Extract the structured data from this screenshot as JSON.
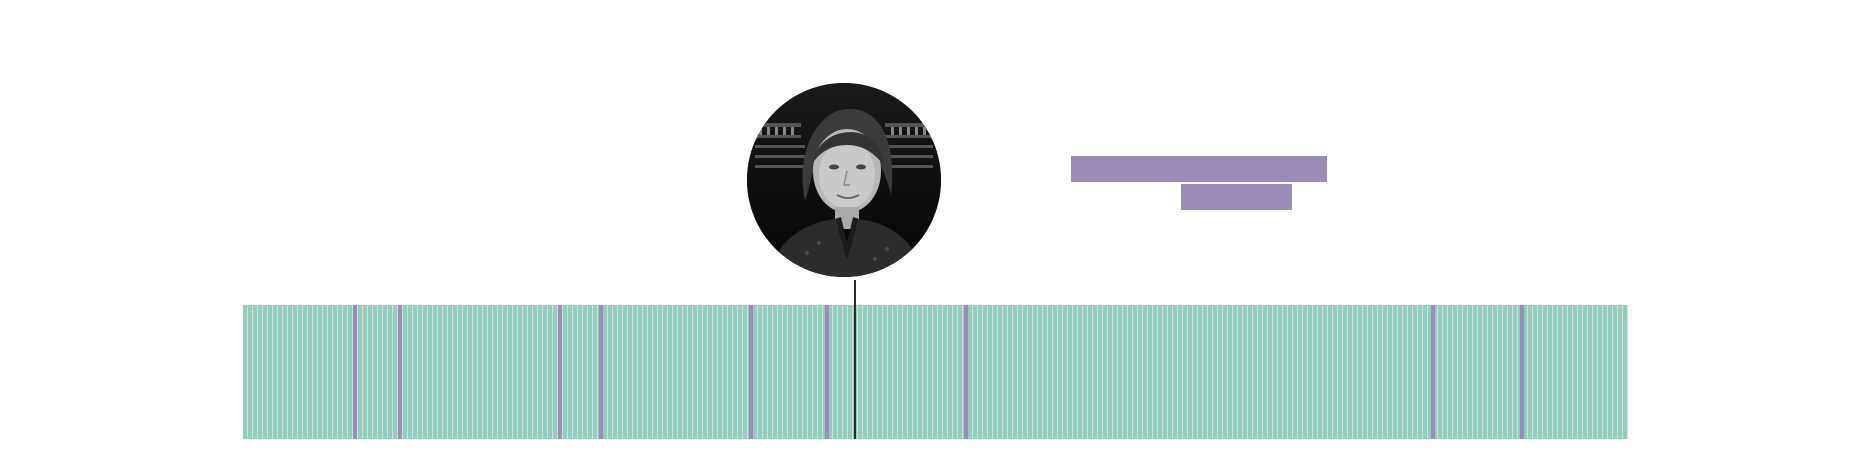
{
  "colors": {
    "timeline": "#93cbbd",
    "timeline_stripe": "#c9e6dd",
    "marker": "#9b8bb8",
    "label_placeholder": "#9b8bb8",
    "pointer": "#2a2a2a"
  },
  "portrait": {
    "icon": "person-photo",
    "style": "grayscale"
  },
  "timeline": {
    "marker_count": 10,
    "has_current_position_indicator": true
  }
}
